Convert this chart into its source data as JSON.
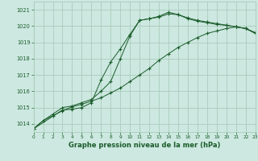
{
  "bg_color": "#cce8e0",
  "grid_color": "#aaccbb",
  "line_color": "#1a5c2a",
  "title": "Graphe pression niveau de la mer (hPa)",
  "xlim": [
    0,
    23
  ],
  "ylim": [
    1013.5,
    1021.5
  ],
  "yticks": [
    1014,
    1015,
    1016,
    1017,
    1018,
    1019,
    1020,
    1021
  ],
  "xticks": [
    0,
    1,
    2,
    3,
    4,
    5,
    6,
    7,
    8,
    9,
    10,
    11,
    12,
    13,
    14,
    15,
    16,
    17,
    18,
    19,
    20,
    21,
    22,
    23
  ],
  "series1_x": [
    0,
    1,
    2,
    3,
    4,
    5,
    6,
    7,
    8,
    9,
    10,
    11,
    12,
    13,
    14,
    15,
    16,
    17,
    18,
    19,
    20,
    21,
    22,
    23
  ],
  "series1_y": [
    1013.7,
    1014.2,
    1014.5,
    1014.8,
    1015.05,
    1015.2,
    1015.4,
    1015.6,
    1015.9,
    1016.2,
    1016.6,
    1017.0,
    1017.4,
    1017.9,
    1018.3,
    1018.7,
    1019.0,
    1019.3,
    1019.55,
    1019.7,
    1019.85,
    1019.95,
    1019.85,
    1019.6
  ],
  "series2_x": [
    0,
    1,
    2,
    3,
    4,
    5,
    6,
    7,
    8,
    9,
    10,
    11,
    12,
    13,
    14,
    15,
    16,
    17,
    18,
    19,
    20,
    21,
    22,
    23
  ],
  "series2_y": [
    1013.7,
    1014.2,
    1014.6,
    1015.0,
    1015.1,
    1015.3,
    1015.5,
    1016.0,
    1016.6,
    1018.0,
    1019.4,
    1020.35,
    1020.45,
    1020.55,
    1020.75,
    1020.7,
    1020.45,
    1020.3,
    1020.2,
    1020.1,
    1020.05,
    1019.95,
    1019.85,
    1019.55
  ],
  "series3_x": [
    0,
    3,
    4,
    5,
    6,
    7,
    8,
    9,
    10,
    11,
    12,
    13,
    14,
    15,
    16,
    17,
    18,
    19,
    20,
    21,
    22,
    23
  ],
  "series3_y": [
    1013.7,
    1014.85,
    1014.9,
    1015.0,
    1015.3,
    1016.7,
    1017.8,
    1018.6,
    1019.5,
    1020.35,
    1020.45,
    1020.6,
    1020.85,
    1020.7,
    1020.5,
    1020.35,
    1020.25,
    1020.15,
    1020.05,
    1019.95,
    1019.85,
    1019.55
  ]
}
